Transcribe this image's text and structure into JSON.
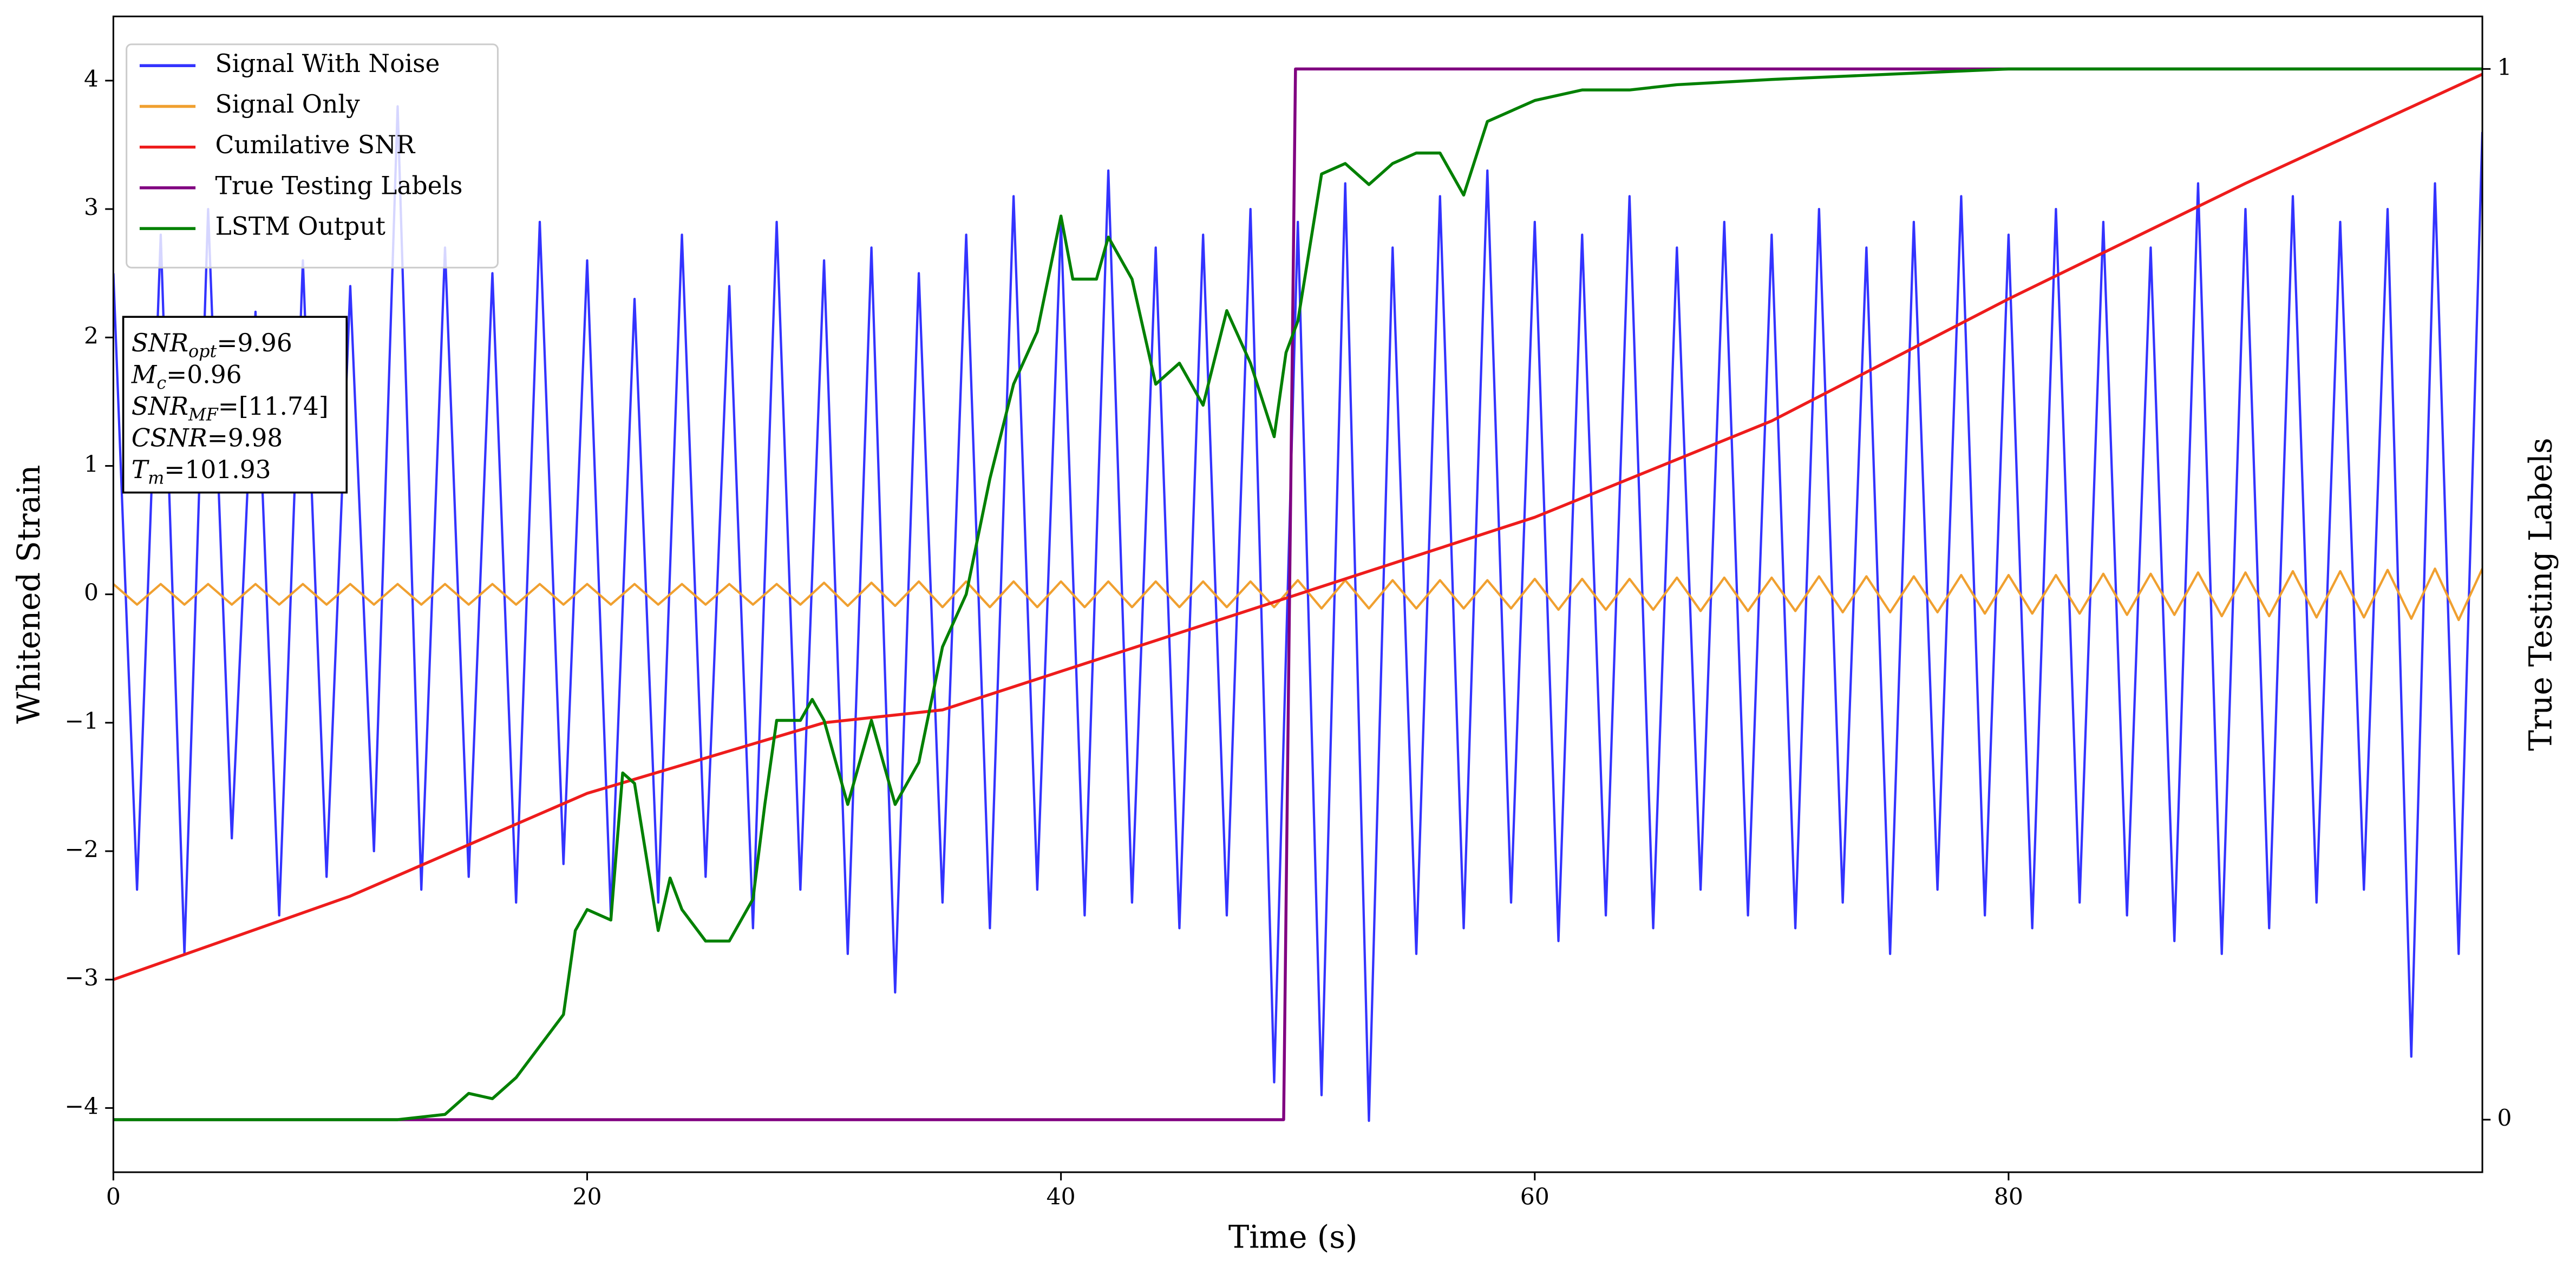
{
  "chart_data": {
    "type": "line",
    "xlabel": "Time (s)",
    "ylabel": "Whitened Strain",
    "y2label": "True Testing Labels",
    "xlim": [
      0,
      100
    ],
    "xticks": [
      0,
      20,
      40,
      60,
      80
    ],
    "ylim": [
      -4.5,
      4.5
    ],
    "yticks": [
      {
        "value": -4,
        "label": "−4"
      },
      {
        "value": -3,
        "label": "−3"
      },
      {
        "value": -2,
        "label": "−2"
      },
      {
        "value": -1,
        "label": "−1"
      },
      0,
      1,
      2,
      3,
      4
    ],
    "y2lim": [
      -0.05,
      1.05
    ],
    "y2ticks": [
      0,
      1
    ],
    "legend": "upper left",
    "series": [
      {
        "name": "Signal With Noise",
        "color": "#3333ff",
        "x": [
          0,
          1,
          2,
          3,
          4,
          5,
          6,
          7,
          8,
          9,
          10,
          11,
          12,
          13,
          14,
          15,
          16,
          17,
          18,
          19,
          20,
          21,
          22,
          23,
          24,
          25,
          26,
          27,
          28,
          29,
          30,
          31,
          32,
          33,
          34,
          35,
          36,
          37,
          38,
          39,
          40,
          41,
          42,
          43,
          44,
          45,
          46,
          47,
          48,
          49,
          50,
          51,
          52,
          53,
          54,
          55,
          56,
          57,
          58,
          59,
          60,
          61,
          62,
          63,
          64,
          65,
          66,
          67,
          68,
          69,
          70,
          71,
          72,
          73,
          74,
          75,
          76,
          77,
          78,
          79,
          80,
          81,
          82,
          83,
          84,
          85,
          86,
          87,
          88,
          89,
          90,
          91,
          92,
          93,
          94,
          95,
          96,
          97,
          98,
          99,
          100
        ],
        "values": [
          2.5,
          -2.3,
          2.8,
          -2.8,
          3.0,
          -1.9,
          2.2,
          -2.5,
          2.6,
          -2.2,
          2.4,
          -2.0,
          3.8,
          -2.3,
          2.7,
          -2.2,
          2.5,
          -2.4,
          2.9,
          -2.1,
          2.6,
          -2.5,
          2.3,
          -2.4,
          2.8,
          -2.2,
          2.4,
          -2.6,
          2.9,
          -2.3,
          2.6,
          -2.8,
          2.7,
          -3.1,
          2.5,
          -2.4,
          2.8,
          -2.6,
          3.1,
          -2.3,
          2.9,
          -2.5,
          3.3,
          -2.4,
          2.7,
          -2.6,
          2.8,
          -2.5,
          3.0,
          -3.8,
          2.9,
          -3.9,
          3.2,
          -4.1,
          2.7,
          -2.8,
          3.1,
          -2.6,
          3.3,
          -2.4,
          2.9,
          -2.7,
          2.8,
          -2.5,
          3.1,
          -2.6,
          2.7,
          -2.3,
          2.9,
          -2.5,
          2.8,
          -2.6,
          3.0,
          -2.4,
          2.7,
          -2.8,
          2.9,
          -2.3,
          3.1,
          -2.5,
          2.8,
          -2.6,
          3.0,
          -2.4,
          2.9,
          -2.5,
          2.7,
          -2.7,
          3.2,
          -2.8,
          3.0,
          -2.6,
          3.1,
          -2.4,
          2.9,
          -2.3,
          3.0,
          -3.6,
          3.2,
          -2.8,
          3.6
        ]
      },
      {
        "name": "Signal Only",
        "color": "#f0a030",
        "x": [
          0,
          1,
          2,
          3,
          4,
          5,
          6,
          7,
          8,
          9,
          10,
          11,
          12,
          13,
          14,
          15,
          16,
          17,
          18,
          19,
          20,
          21,
          22,
          23,
          24,
          25,
          26,
          27,
          28,
          29,
          30,
          31,
          32,
          33,
          34,
          35,
          36,
          37,
          38,
          39,
          40,
          41,
          42,
          43,
          44,
          45,
          46,
          47,
          48,
          49,
          50,
          51,
          52,
          53,
          54,
          55,
          56,
          57,
          58,
          59,
          60,
          61,
          62,
          63,
          64,
          65,
          66,
          67,
          68,
          69,
          70,
          71,
          72,
          73,
          74,
          75,
          76,
          77,
          78,
          79,
          80,
          81,
          82,
          83,
          84,
          85,
          86,
          87,
          88,
          89,
          90,
          91,
          92,
          93,
          94,
          95,
          96,
          97,
          98,
          99,
          100
        ],
        "values": [
          0.08,
          -0.08,
          0.08,
          -0.08,
          0.08,
          -0.08,
          0.08,
          -0.08,
          0.08,
          -0.08,
          0.08,
          -0.08,
          0.08,
          -0.08,
          0.08,
          -0.08,
          0.08,
          -0.08,
          0.08,
          -0.08,
          0.08,
          -0.08,
          0.08,
          -0.08,
          0.08,
          -0.08,
          0.08,
          -0.08,
          0.08,
          -0.08,
          0.09,
          -0.09,
          0.09,
          -0.09,
          0.1,
          -0.1,
          0.1,
          -0.1,
          0.1,
          -0.1,
          0.1,
          -0.1,
          0.1,
          -0.1,
          0.1,
          -0.1,
          0.1,
          -0.1,
          0.1,
          -0.1,
          0.11,
          -0.11,
          0.11,
          -0.11,
          0.11,
          -0.11,
          0.11,
          -0.11,
          0.11,
          -0.11,
          0.12,
          -0.12,
          0.12,
          -0.12,
          0.12,
          -0.12,
          0.13,
          -0.13,
          0.13,
          -0.13,
          0.13,
          -0.13,
          0.14,
          -0.14,
          0.14,
          -0.14,
          0.14,
          -0.14,
          0.15,
          -0.15,
          0.15,
          -0.15,
          0.15,
          -0.15,
          0.16,
          -0.16,
          0.16,
          -0.16,
          0.17,
          -0.17,
          0.17,
          -0.17,
          0.18,
          -0.18,
          0.18,
          -0.18,
          0.19,
          -0.19,
          0.2,
          -0.2,
          0.2
        ]
      },
      {
        "name": "Cumilative SNR",
        "color": "#ee1c1c",
        "x": [
          0,
          10,
          20,
          30,
          35,
          40,
          45,
          50,
          55,
          60,
          70,
          80,
          90,
          100
        ],
        "values": [
          -3.0,
          -2.35,
          -1.55,
          -1.0,
          -0.9,
          -0.6,
          -0.3,
          0.0,
          0.3,
          0.6,
          1.35,
          2.3,
          3.2,
          4.05
        ]
      },
      {
        "name": "True Testing Labels",
        "color": "#800080",
        "axis": "y2",
        "x": [
          0,
          49.4,
          49.9,
          100
        ],
        "values": [
          0,
          0,
          1,
          1
        ]
      },
      {
        "name": "LSTM Output",
        "color": "#008000",
        "axis": "y2",
        "x": [
          0,
          12,
          14,
          15,
          16,
          17,
          18,
          19,
          19.5,
          20,
          21,
          21.5,
          22,
          23,
          23.5,
          24,
          25,
          26,
          27,
          27.5,
          28,
          29,
          29.5,
          30,
          31,
          32,
          33,
          34,
          35,
          36,
          37,
          38,
          39,
          40,
          40.5,
          41.5,
          42,
          43,
          44,
          45,
          46,
          47,
          48,
          49,
          49.5,
          50,
          51,
          52,
          53,
          54,
          55,
          56,
          57,
          58,
          60,
          62,
          64,
          66,
          70,
          80,
          100
        ],
        "values": [
          0,
          0,
          0.005,
          0.025,
          0.02,
          0.04,
          0.07,
          0.1,
          0.18,
          0.2,
          0.19,
          0.33,
          0.32,
          0.18,
          0.23,
          0.2,
          0.17,
          0.17,
          0.21,
          0.3,
          0.38,
          0.38,
          0.4,
          0.38,
          0.3,
          0.38,
          0.3,
          0.34,
          0.45,
          0.5,
          0.61,
          0.7,
          0.75,
          0.86,
          0.8,
          0.8,
          0.84,
          0.8,
          0.7,
          0.72,
          0.68,
          0.77,
          0.72,
          0.65,
          0.73,
          0.76,
          0.9,
          0.91,
          0.89,
          0.91,
          0.92,
          0.92,
          0.88,
          0.95,
          0.97,
          0.98,
          0.98,
          0.985,
          0.99,
          1.0,
          1.0
        ]
      }
    ],
    "annotations": [
      {
        "main": "SNR",
        "sub": "opt",
        "rest": "=9.96"
      },
      {
        "main": "M",
        "sub": "c",
        "rest": "=0.96"
      },
      {
        "main": "SNR",
        "sub": "MF",
        "rest": "=[11.74]"
      },
      {
        "main": "CSNR",
        "sub": null,
        "rest": "=9.98"
      },
      {
        "main": "T",
        "sub": "m",
        "rest": "=101.93"
      }
    ]
  }
}
